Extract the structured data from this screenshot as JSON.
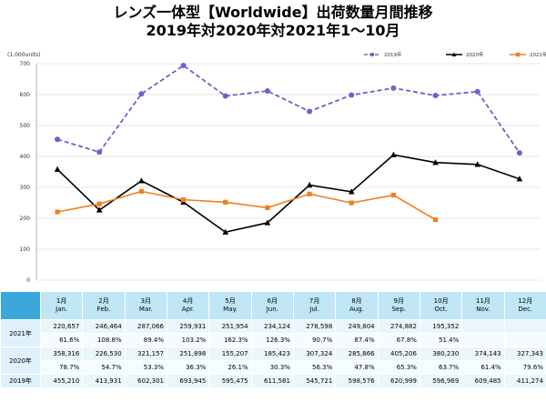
{
  "title_line1": "レンズ一体型【Worldwide】出荷数量月間推移",
  "title_line2": "2019年対2020年対2021年1〜10月",
  "chart_data": {
    "type": "line",
    "unit_label": "(1,000units)",
    "ylim": [
      0,
      700
    ],
    "yticks": [
      0,
      100,
      200,
      300,
      400,
      500,
      600,
      700
    ],
    "categories": [
      "1月",
      "2月",
      "3月",
      "4月",
      "5月",
      "6月",
      "7月",
      "8月",
      "9月",
      "10月",
      "11月",
      "12月"
    ],
    "series": [
      {
        "name": "2019年",
        "color": "#6a63c8",
        "style": "dashed",
        "marker": "circle",
        "values": [
          455.21,
          413.931,
          602.301,
          693.945,
          595.475,
          611.581,
          545.721,
          598.576,
          620.999,
          596.969,
          609.485,
          411.274
        ]
      },
      {
        "name": "2020年",
        "color": "#000000",
        "style": "solid",
        "marker": "triangle",
        "values": [
          358.316,
          226.53,
          321.157,
          251.898,
          155.207,
          185.423,
          307.324,
          285.866,
          405.206,
          380.23,
          374.143,
          327.343
        ]
      },
      {
        "name": "2021年",
        "color": "#f07f1e",
        "style": "solid",
        "marker": "square",
        "values": [
          220.657,
          246.464,
          287.066,
          259.931,
          251.954,
          234.124,
          278.598,
          249.804,
          274.882,
          195.352,
          null,
          null
        ]
      }
    ]
  },
  "table": {
    "months": [
      {
        "ja": "1月",
        "en": "Jan."
      },
      {
        "ja": "2月",
        "en": "Feb."
      },
      {
        "ja": "3月",
        "en": "Mar."
      },
      {
        "ja": "4月",
        "en": "Apr."
      },
      {
        "ja": "5月",
        "en": "May."
      },
      {
        "ja": "6月",
        "en": "Jun."
      },
      {
        "ja": "7月",
        "en": "Jul."
      },
      {
        "ja": "8月",
        "en": "Aug."
      },
      {
        "ja": "9月",
        "en": "Sep."
      },
      {
        "ja": "10月",
        "en": "Oct."
      },
      {
        "ja": "11月",
        "en": "Nov."
      },
      {
        "ja": "12月",
        "en": "Dec."
      }
    ],
    "rows": [
      {
        "label": "2021年",
        "values": [
          "220,657",
          "246,464",
          "287,066",
          "259,931",
          "251,954",
          "234,124",
          "278,598",
          "249,804",
          "274,882",
          "195,352",
          "",
          ""
        ],
        "pct": [
          "61.6%",
          "108.8%",
          "89.4%",
          "103.2%",
          "162.3%",
          "126.3%",
          "90.7%",
          "87.4%",
          "67.8%",
          "51.4%",
          "",
          ""
        ]
      },
      {
        "label": "2020年",
        "values": [
          "358,316",
          "226,530",
          "321,157",
          "251,898",
          "155,207",
          "185,423",
          "307,324",
          "285,866",
          "405,206",
          "380,230",
          "374,143",
          "327,343"
        ],
        "pct": [
          "78.7%",
          "54.7%",
          "53.3%",
          "36.3%",
          "26.1%",
          "30.3%",
          "56.3%",
          "47.8%",
          "65.3%",
          "63.7%",
          "61.4%",
          "79.6%"
        ]
      },
      {
        "label": "2019年",
        "values": [
          "455,210",
          "413,931",
          "602,301",
          "693,945",
          "595,475",
          "611,581",
          "545,721",
          "598,576",
          "620,999",
          "596,969",
          "609,485",
          "411,274"
        ]
      }
    ]
  }
}
